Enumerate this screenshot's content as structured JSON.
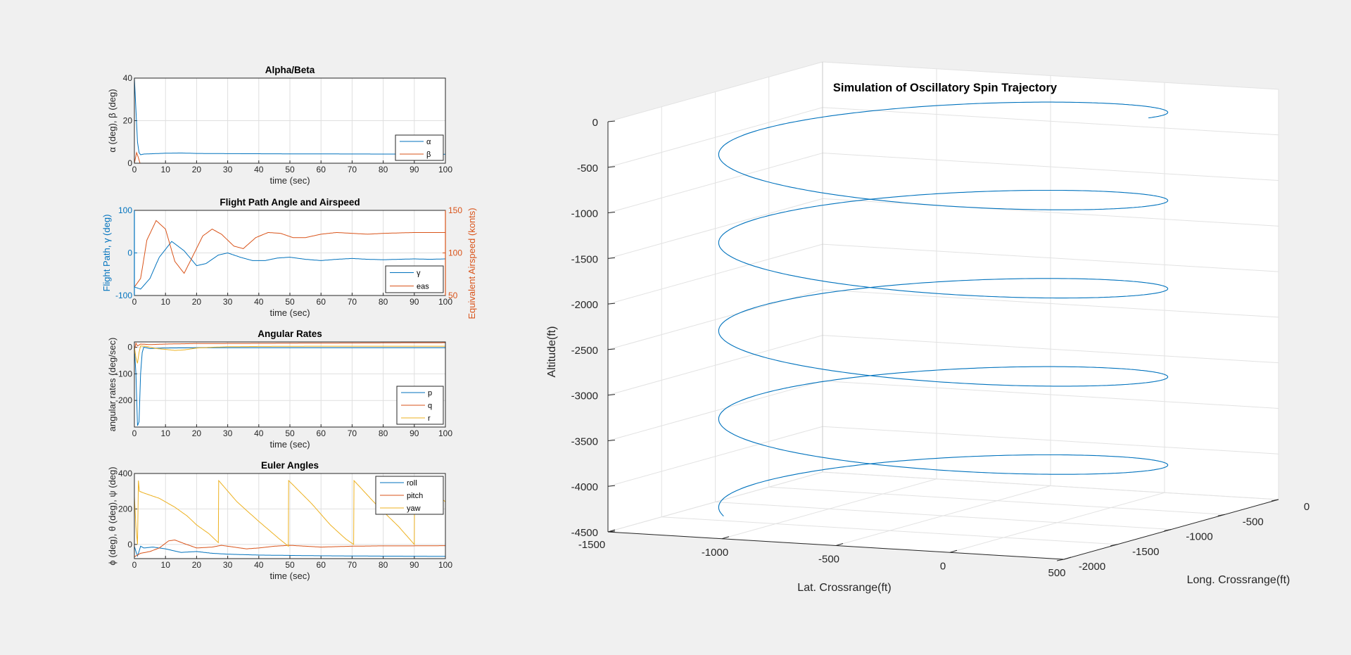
{
  "colors": {
    "blue": "#0072BD",
    "orange": "#D95319",
    "yellow": "#EDB120",
    "axis": "#262626",
    "grid": "#dfdfdf",
    "background": "#f0f0f0"
  },
  "chart_data": [
    {
      "type": "line",
      "title": "Alpha/Beta",
      "xlabel": "time (sec)",
      "ylabel": "α (deg), β (deg)",
      "xlim": [
        0,
        100
      ],
      "ylim": [
        0,
        40
      ],
      "xticks": [
        "0",
        "10",
        "20",
        "30",
        "40",
        "50",
        "60",
        "70",
        "80",
        "90",
        "100"
      ],
      "yticks": [
        "0",
        "20",
        "40"
      ],
      "grid": true,
      "legend_position": "bottom-right",
      "series": [
        {
          "name": "α",
          "color": "#0072BD",
          "points": [
            [
              0,
              40
            ],
            [
              0.5,
              25
            ],
            [
              1,
              10
            ],
            [
              1.5,
              5
            ],
            [
              2,
              4
            ],
            [
              3,
              4.3
            ],
            [
              10,
              4.7
            ],
            [
              15,
              4.8
            ],
            [
              20,
              4.6
            ],
            [
              30,
              4.5
            ],
            [
              50,
              4.4
            ],
            [
              80,
              4.3
            ],
            [
              100,
              4.2
            ]
          ]
        },
        {
          "name": "β",
          "color": "#D95319",
          "points": [
            [
              0,
              0
            ],
            [
              0.7,
              5
            ],
            [
              1.2,
              3
            ],
            [
              1.8,
              0
            ],
            [
              3,
              -0.3
            ],
            [
              10,
              -0.5
            ],
            [
              30,
              -0.6
            ],
            [
              60,
              -0.6
            ],
            [
              100,
              -0.6
            ]
          ]
        }
      ]
    },
    {
      "type": "line",
      "title": "Flight Path Angle and Airspeed",
      "xlabel": "time (sec)",
      "ylabel": "Flight Path, γ (deg)",
      "ylabel_right": "Equivalent Airspeed (konts)",
      "xlim": [
        0,
        100
      ],
      "ylim": [
        -100,
        100
      ],
      "ylim_right": [
        50,
        150
      ],
      "xticks": [
        "0",
        "10",
        "20",
        "30",
        "40",
        "50",
        "60",
        "70",
        "80",
        "90",
        "100"
      ],
      "yticks": [
        "-100",
        "0",
        "100"
      ],
      "yticks_right": [
        "50",
        "100",
        "150"
      ],
      "grid": true,
      "legend_position": "bottom-right",
      "series": [
        {
          "name": "γ",
          "axis": "left",
          "color": "#0072BD",
          "points": [
            [
              0,
              -80
            ],
            [
              2,
              -85
            ],
            [
              5,
              -60
            ],
            [
              8,
              -10
            ],
            [
              12,
              27
            ],
            [
              16,
              5
            ],
            [
              20,
              -30
            ],
            [
              23,
              -25
            ],
            [
              27,
              -5
            ],
            [
              30,
              0
            ],
            [
              34,
              -10
            ],
            [
              38,
              -18
            ],
            [
              42,
              -18
            ],
            [
              46,
              -12
            ],
            [
              50,
              -10
            ],
            [
              55,
              -15
            ],
            [
              60,
              -18
            ],
            [
              65,
              -15
            ],
            [
              70,
              -13
            ],
            [
              75,
              -15
            ],
            [
              80,
              -16
            ],
            [
              85,
              -15
            ],
            [
              90,
              -14
            ],
            [
              95,
              -15
            ],
            [
              100,
              -14
            ]
          ]
        },
        {
          "name": "eas",
          "axis": "right",
          "color": "#D95319",
          "points": [
            [
              0,
              60
            ],
            [
              2,
              70
            ],
            [
              4,
              115
            ],
            [
              7,
              138
            ],
            [
              10,
              128
            ],
            [
              13,
              90
            ],
            [
              16,
              76
            ],
            [
              19,
              98
            ],
            [
              22,
              120
            ],
            [
              25,
              128
            ],
            [
              28,
              122
            ],
            [
              32,
              108
            ],
            [
              35,
              105
            ],
            [
              39,
              118
            ],
            [
              43,
              124
            ],
            [
              47,
              123
            ],
            [
              51,
              118
            ],
            [
              55,
              118
            ],
            [
              60,
              122
            ],
            [
              65,
              124
            ],
            [
              70,
              123
            ],
            [
              75,
              122
            ],
            [
              80,
              123
            ],
            [
              90,
              124
            ],
            [
              100,
              124
            ]
          ]
        }
      ]
    },
    {
      "type": "line",
      "title": "Angular Rates",
      "xlabel": "time (sec)",
      "ylabel": "angular rates (deg/sec)",
      "xlim": [
        0,
        100
      ],
      "ylim": [
        -300,
        20
      ],
      "xticks": [
        "0",
        "10",
        "20",
        "30",
        "40",
        "50",
        "60",
        "70",
        "80",
        "90",
        "100"
      ],
      "yticks": [
        "-200",
        "-100",
        "0"
      ],
      "grid": true,
      "legend_position": "bottom-right",
      "series": [
        {
          "name": "p",
          "color": "#0072BD",
          "points": [
            [
              0,
              -5
            ],
            [
              0.5,
              -100
            ],
            [
              1,
              -295
            ],
            [
              1.5,
              -280
            ],
            [
              2,
              -100
            ],
            [
              2.5,
              -20
            ],
            [
              3,
              0
            ],
            [
              5,
              -5
            ],
            [
              10,
              -3
            ],
            [
              20,
              -2
            ],
            [
              50,
              -2
            ],
            [
              100,
              -2
            ]
          ]
        },
        {
          "name": "q",
          "color": "#D95319",
          "points": [
            [
              0,
              -10
            ],
            [
              0.5,
              15
            ],
            [
              1,
              5
            ],
            [
              2,
              12
            ],
            [
              5,
              10
            ],
            [
              10,
              12
            ],
            [
              20,
              14
            ],
            [
              50,
              15
            ],
            [
              100,
              17
            ]
          ]
        },
        {
          "name": "r",
          "color": "#EDB120",
          "points": [
            [
              0,
              0
            ],
            [
              0.5,
              -40
            ],
            [
              1,
              -60
            ],
            [
              1.5,
              -20
            ],
            [
              2,
              5
            ],
            [
              4,
              3
            ],
            [
              7,
              -5
            ],
            [
              10,
              -8
            ],
            [
              13,
              -12
            ],
            [
              16,
              -10
            ],
            [
              20,
              -3
            ],
            [
              25,
              0
            ],
            [
              30,
              2
            ],
            [
              40,
              3
            ],
            [
              60,
              4
            ],
            [
              100,
              4
            ]
          ]
        }
      ]
    },
    {
      "type": "line",
      "title": "Euler Angles",
      "xlabel": "time (sec)",
      "ylabel": "ϕ (deg), θ (deg), ψ (deg)",
      "xlim": [
        0,
        100
      ],
      "ylim": [
        -80,
        400
      ],
      "xticks": [
        "0",
        "10",
        "20",
        "30",
        "40",
        "50",
        "60",
        "70",
        "80",
        "90",
        "100"
      ],
      "yticks": [
        "0",
        "200",
        "400"
      ],
      "grid": true,
      "legend_position": "top-right",
      "series": [
        {
          "name": "roll",
          "color": "#0072BD",
          "points": [
            [
              0,
              -10
            ],
            [
              0.5,
              -40
            ],
            [
              1,
              -65
            ],
            [
              1.5,
              -40
            ],
            [
              2,
              -10
            ],
            [
              3,
              -20
            ],
            [
              6,
              -15
            ],
            [
              10,
              -25
            ],
            [
              15,
              -45
            ],
            [
              20,
              -40
            ],
            [
              25,
              -50
            ],
            [
              30,
              -55
            ],
            [
              40,
              -60
            ],
            [
              50,
              -62
            ],
            [
              60,
              -64
            ],
            [
              70,
              -65
            ],
            [
              80,
              -66
            ],
            [
              100,
              -67
            ]
          ]
        },
        {
          "name": "pitch",
          "color": "#D95319",
          "points": [
            [
              0,
              -70
            ],
            [
              1,
              -60
            ],
            [
              2,
              -50
            ],
            [
              5,
              -40
            ],
            [
              8,
              -20
            ],
            [
              11,
              20
            ],
            [
              13,
              25
            ],
            [
              16,
              5
            ],
            [
              20,
              -20
            ],
            [
              25,
              -15
            ],
            [
              28,
              -5
            ],
            [
              32,
              -15
            ],
            [
              36,
              -25
            ],
            [
              40,
              -20
            ],
            [
              45,
              -10
            ],
            [
              50,
              -5
            ],
            [
              55,
              -10
            ],
            [
              60,
              -15
            ],
            [
              70,
              -10
            ],
            [
              80,
              -8
            ],
            [
              90,
              -8
            ],
            [
              100,
              -7
            ]
          ]
        },
        {
          "name": "yaw",
          "color": "#EDB120",
          "points": [
            [
              0,
              270
            ],
            [
              0.5,
              100
            ],
            [
              1,
              0
            ],
            [
              1.3,
              360
            ],
            [
              1.6,
              300
            ],
            [
              3,
              290
            ],
            [
              8,
              260
            ],
            [
              13,
              210
            ],
            [
              17,
              160
            ],
            [
              20,
              110
            ],
            [
              24,
              60
            ],
            [
              27,
              10
            ],
            [
              27.1,
              360
            ],
            [
              33,
              240
            ],
            [
              40,
              130
            ],
            [
              46,
              40
            ],
            [
              49.5,
              -10
            ],
            [
              49.6,
              360
            ],
            [
              57,
              230
            ],
            [
              63,
              110
            ],
            [
              68,
              30
            ],
            [
              70.5,
              0
            ],
            [
              70.6,
              360
            ],
            [
              78,
              220
            ],
            [
              85,
              100
            ],
            [
              90,
              0
            ],
            [
              90.1,
              360
            ],
            [
              96,
              300
            ],
            [
              100,
              240
            ]
          ]
        }
      ]
    },
    {
      "type": "line3d",
      "title": "Simulation of Oscillatory Spin Trajectory",
      "xlabel": "Lat. Crossrange(ft)",
      "ylabel": "Long. Crossrange(ft)",
      "zlabel": "Altitude(ft)",
      "xlim": [
        -1500,
        500
      ],
      "ylim": [
        -2000,
        0
      ],
      "zlim": [
        -4500,
        0
      ],
      "xticks": [
        "-1500",
        "-1000",
        "-500",
        "0",
        "500"
      ],
      "yticks": [
        "-2000",
        "-1500",
        "-1000",
        "-500",
        "0"
      ],
      "zticks": [
        "-4500",
        "-4000",
        "-3500",
        "-3000",
        "-2500",
        "-2000",
        "-1500",
        "-1000",
        "-500",
        "0"
      ],
      "grid": true,
      "series": [
        {
          "name": "",
          "color": "#0072BD",
          "helix": {
            "x_center": -500,
            "x_amplitude": 900,
            "y_center": -1000,
            "y_amplitude": 850,
            "z_start": 0,
            "z_end": -4450,
            "turns": 4.6,
            "start_phase_deg": 0
          }
        }
      ]
    }
  ]
}
